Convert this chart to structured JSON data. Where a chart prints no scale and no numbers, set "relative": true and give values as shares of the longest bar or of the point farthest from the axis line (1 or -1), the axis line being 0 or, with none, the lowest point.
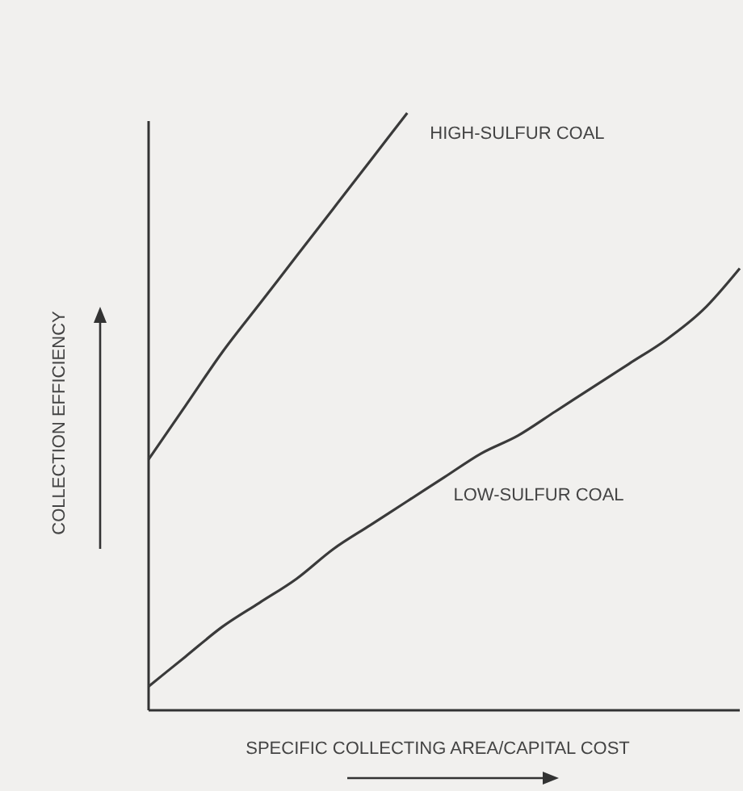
{
  "chart_data": {
    "type": "line",
    "relative": true,
    "xlabel": "SPECIFIC COLLECTING AREA/CAPITAL COST",
    "ylabel": "COLLECTION EFFICIENCY",
    "categories": [
      null,
      null,
      null,
      null,
      null,
      null,
      null,
      null,
      null,
      null,
      null,
      null,
      null,
      null,
      null,
      null,
      null
    ],
    "series": [
      {
        "name": "HIGH-SULFUR COAL",
        "color": "#3a3a3a",
        "values": [
          0.42,
          0.51,
          0.6,
          0.68,
          0.76,
          0.84,
          0.92,
          1.0,
          null,
          null,
          null,
          null,
          null,
          null,
          null,
          null,
          null
        ]
      },
      {
        "name": "LOW-SULFUR COAL",
        "color": "#3a3a3a",
        "values": [
          0.04,
          0.09,
          0.14,
          0.18,
          0.22,
          0.27,
          0.31,
          0.35,
          0.39,
          0.43,
          0.46,
          0.5,
          0.54,
          0.58,
          0.62,
          0.67,
          0.74
        ]
      }
    ],
    "legend": false,
    "grid": false,
    "marker": "none",
    "line_style": "solid"
  }
}
